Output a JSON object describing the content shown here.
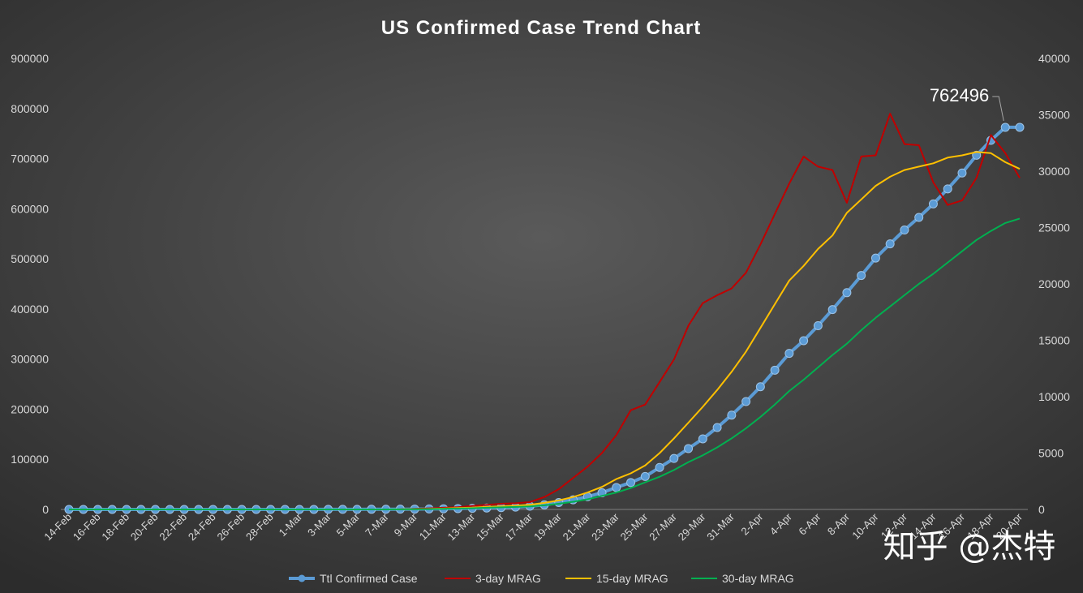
{
  "chart_data": {
    "type": "line",
    "title": "US Confirmed Case Trend Chart",
    "xlabel": "",
    "ylabel": "",
    "y2label": "",
    "ylim": [
      0,
      900000
    ],
    "y2lim": [
      0,
      40000
    ],
    "yticks": [
      0,
      100000,
      200000,
      300000,
      400000,
      500000,
      600000,
      700000,
      800000,
      900000
    ],
    "y2ticks": [
      0,
      5000,
      10000,
      15000,
      20000,
      25000,
      30000,
      35000,
      40000
    ],
    "categories": [
      "14-Feb",
      "15-Feb",
      "16-Feb",
      "17-Feb",
      "18-Feb",
      "19-Feb",
      "20-Feb",
      "21-Feb",
      "22-Feb",
      "23-Feb",
      "24-Feb",
      "25-Feb",
      "26-Feb",
      "27-Feb",
      "28-Feb",
      "29-Feb",
      "1-Mar",
      "2-Mar",
      "3-Mar",
      "4-Mar",
      "5-Mar",
      "6-Mar",
      "7-Mar",
      "8-Mar",
      "9-Mar",
      "10-Mar",
      "11-Mar",
      "12-Mar",
      "13-Mar",
      "14-Mar",
      "15-Mar",
      "16-Mar",
      "17-Mar",
      "18-Mar",
      "19-Mar",
      "20-Mar",
      "21-Mar",
      "22-Mar",
      "23-Mar",
      "24-Mar",
      "25-Mar",
      "26-Mar",
      "27-Mar",
      "28-Mar",
      "29-Mar",
      "30-Mar",
      "31-Mar",
      "1-Apr",
      "2-Apr",
      "3-Apr",
      "4-Apr",
      "5-Apr",
      "6-Apr",
      "7-Apr",
      "8-Apr",
      "9-Apr",
      "10-Apr",
      "11-Apr",
      "12-Apr",
      "13-Apr",
      "14-Apr",
      "15-Apr",
      "16-Apr",
      "17-Apr",
      "18-Apr",
      "19-Apr",
      "20-Apr"
    ],
    "xtick_labels": [
      "14-Feb",
      "16-Feb",
      "18-Feb",
      "20-Feb",
      "22-Feb",
      "24-Feb",
      "26-Feb",
      "28-Feb",
      "1-Mar",
      "3-Mar",
      "5-Mar",
      "7-Mar",
      "9-Mar",
      "11-Mar",
      "13-Mar",
      "15-Mar",
      "17-Mar",
      "19-Mar",
      "21-Mar",
      "23-Mar",
      "25-Mar",
      "27-Mar",
      "29-Mar",
      "31-Mar",
      "2-Apr",
      "4-Apr",
      "6-Apr",
      "8-Apr",
      "10-Apr",
      "12-Apr",
      "14-Apr",
      "16-Apr",
      "18-Apr",
      "20-Apr"
    ],
    "series": [
      {
        "name": "Ttl Confirmed Case",
        "axis": "left",
        "color": "#5b9bd5",
        "values": [
          15,
          15,
          15,
          15,
          15,
          15,
          15,
          15,
          15,
          15,
          53,
          57,
          60,
          60,
          69,
          70,
          75,
          100,
          125,
          160,
          220,
          320,
          430,
          550,
          700,
          1000,
          1300,
          1700,
          2200,
          2900,
          3600,
          4600,
          6400,
          9100,
          13800,
          19300,
          25500,
          33300,
          43800,
          53700,
          65800,
          83800,
          101700,
          121500,
          140900,
          163500,
          188200,
          215300,
          244900,
          277900,
          311400,
          336700,
          366700,
          398800,
          432500,
          466800,
          501600,
          530000,
          557600,
          582700,
          609700,
          639600,
          671400,
          706800,
          736500,
          762496,
          762496
        ]
      },
      {
        "name": "3-day MRAG",
        "axis": "right",
        "color": "#c00000",
        "values": [
          0,
          0,
          0,
          0,
          0,
          0,
          0,
          0,
          0,
          0,
          0,
          0,
          0,
          0,
          0,
          0,
          0,
          0,
          0,
          0,
          0,
          0,
          0,
          10,
          50,
          100,
          150,
          200,
          300,
          400,
          500,
          550,
          650,
          1100,
          1800,
          2800,
          3800,
          5000,
          6600,
          8800,
          9300,
          11300,
          13300,
          16300,
          18300,
          19000,
          19600,
          21000,
          23500,
          26200,
          28900,
          31300,
          30400,
          30100,
          27200,
          31300,
          31400,
          35100,
          32400,
          32300,
          29000,
          27000,
          27400,
          29400,
          33200,
          31600,
          29400
        ]
      },
      {
        "name": "15-day MRAG",
        "axis": "right",
        "color": "#ffc000",
        "values": [
          0,
          0,
          0,
          0,
          0,
          0,
          0,
          0,
          0,
          0,
          0,
          0,
          0,
          0,
          0,
          0,
          0,
          0,
          0,
          0,
          0,
          0,
          0,
          10,
          20,
          40,
          80,
          120,
          160,
          220,
          280,
          330,
          420,
          580,
          800,
          1100,
          1500,
          2000,
          2700,
          3200,
          3900,
          5000,
          6300,
          7700,
          9100,
          10600,
          12200,
          14000,
          16100,
          18200,
          20300,
          21600,
          23100,
          24300,
          26300,
          27500,
          28700,
          29500,
          30100,
          30400,
          30700,
          31200,
          31400,
          31700,
          31600,
          30800,
          30200
        ]
      },
      {
        "name": "30-day MRAG",
        "axis": "right",
        "color": "#00b050",
        "values": [
          0,
          0,
          0,
          0,
          0,
          0,
          0,
          0,
          0,
          0,
          0,
          0,
          0,
          0,
          0,
          0,
          0,
          0,
          0,
          0,
          0,
          0,
          0,
          10,
          20,
          30,
          50,
          80,
          110,
          150,
          190,
          220,
          270,
          370,
          500,
          680,
          900,
          1200,
          1500,
          1900,
          2400,
          2900,
          3500,
          4200,
          4800,
          5500,
          6300,
          7200,
          8200,
          9300,
          10500,
          11500,
          12600,
          13700,
          14700,
          15900,
          17000,
          18000,
          19000,
          20000,
          20900,
          21900,
          22900,
          23900,
          24700,
          25400,
          25800
        ]
      }
    ],
    "annotations": [
      {
        "series": "Ttl Confirmed Case",
        "category": "19-Apr",
        "text": "762496"
      }
    ],
    "legend_position": "bottom",
    "grid": false,
    "watermark": "知乎 @杰特"
  }
}
